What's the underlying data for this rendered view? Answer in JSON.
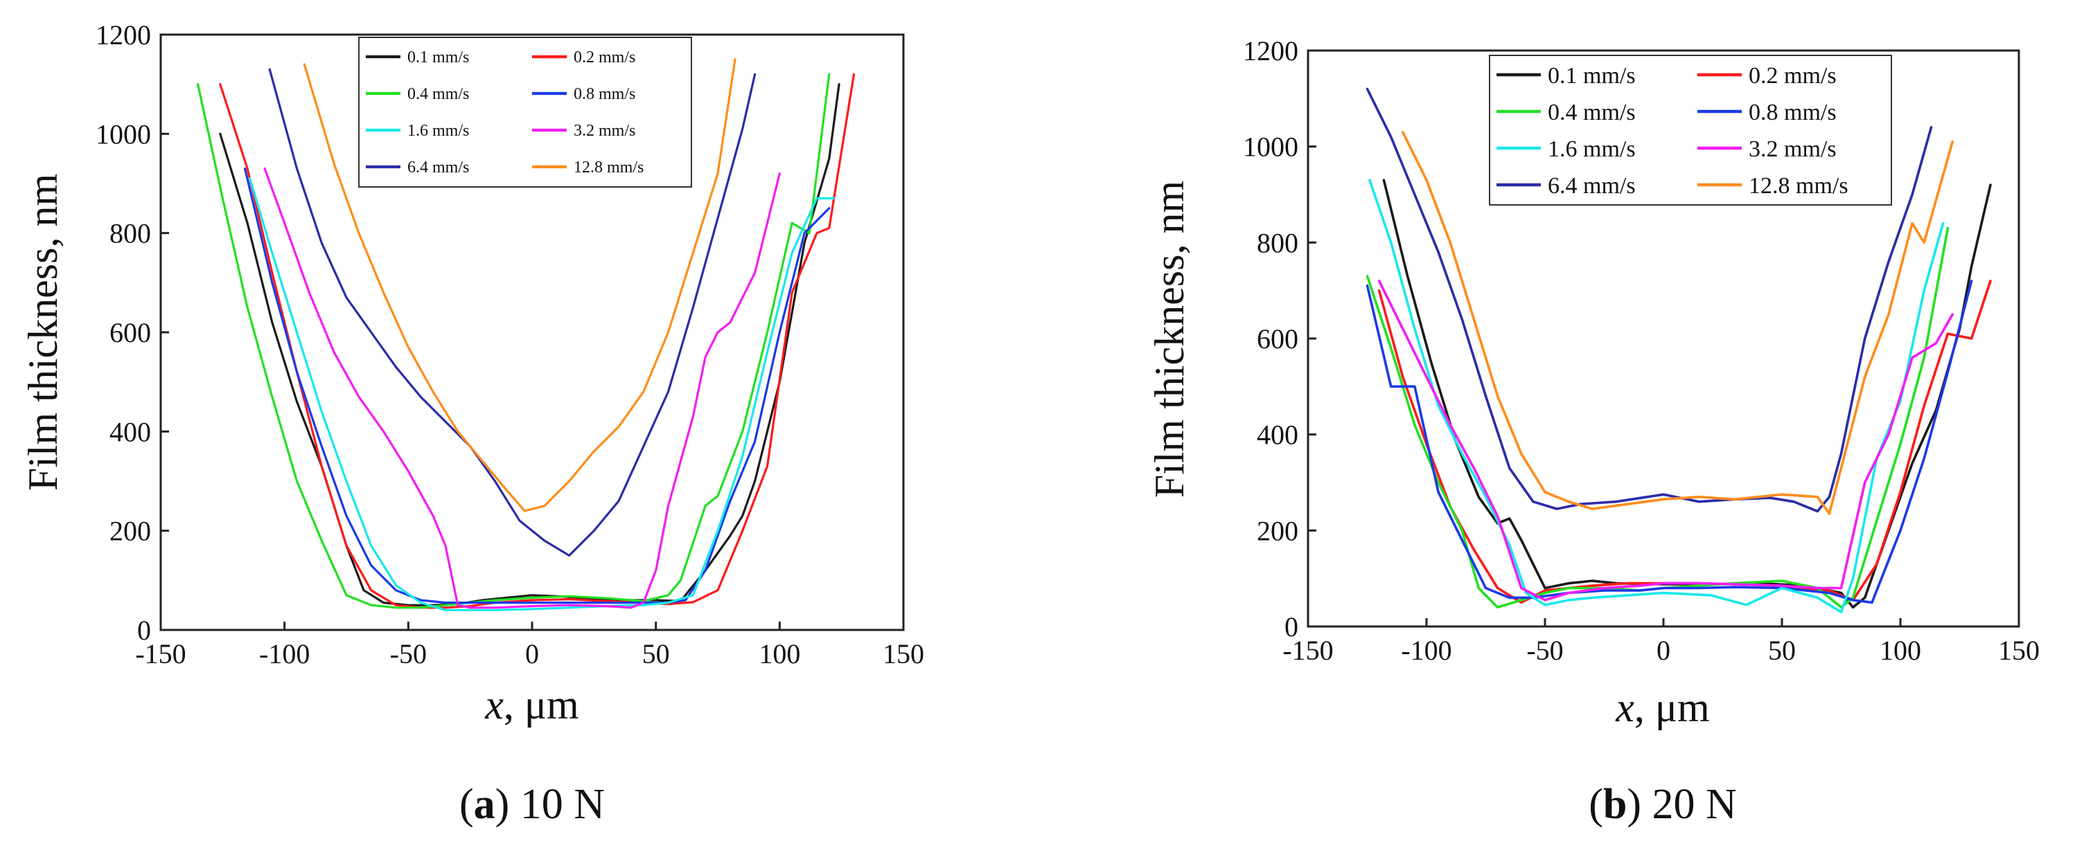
{
  "chart_data": [
    {
      "type": "line",
      "caption_letter": "a",
      "caption_text": " 10 N",
      "xlabel_var": "x",
      "xlabel_unit": ", μm",
      "ylabel": "Film thickness, nm",
      "xlim": [
        -150,
        150
      ],
      "ylim": [
        0,
        1200
      ],
      "xticks": [
        -150,
        -100,
        -50,
        0,
        50,
        100,
        150
      ],
      "yticks": [
        0,
        200,
        400,
        600,
        800,
        1000,
        1200
      ],
      "legend_position": "top-center",
      "series": [
        {
          "name": "0.1 mm/s",
          "color": "#1a1a1a",
          "x": [
            -126,
            -115,
            -105,
            -95,
            -85,
            -75,
            -68,
            -60,
            -50,
            -40,
            -30,
            -20,
            -10,
            0,
            10,
            20,
            30,
            40,
            50,
            60,
            70,
            80,
            85,
            90,
            100,
            110,
            120,
            124
          ],
          "y": [
            1000,
            820,
            620,
            460,
            330,
            170,
            80,
            55,
            50,
            50,
            52,
            60,
            65,
            70,
            68,
            65,
            62,
            60,
            60,
            58,
            120,
            190,
            230,
            300,
            500,
            780,
            950,
            1100
          ]
        },
        {
          "name": "0.2 mm/s",
          "color": "#ff1a1a",
          "x": [
            -126,
            -115,
            -105,
            -95,
            -85,
            -75,
            -65,
            -55,
            -45,
            -35,
            -25,
            -15,
            0,
            15,
            30,
            45,
            55,
            65,
            75,
            85,
            95,
            105,
            115,
            120,
            130
          ],
          "y": [
            1100,
            930,
            720,
            520,
            330,
            170,
            80,
            50,
            45,
            45,
            48,
            55,
            60,
            62,
            58,
            55,
            52,
            56,
            80,
            200,
            330,
            680,
            800,
            810,
            1120
          ]
        },
        {
          "name": "0.4 mm/s",
          "color": "#22e022",
          "x": [
            -135,
            -125,
            -115,
            -105,
            -95,
            -85,
            -75,
            -65,
            -55,
            -45,
            -35,
            -25,
            -15,
            0,
            15,
            30,
            45,
            55,
            60,
            70,
            75,
            85,
            95,
            105,
            112,
            120
          ],
          "y": [
            1100,
            870,
            650,
            470,
            300,
            180,
            70,
            50,
            45,
            45,
            50,
            55,
            60,
            65,
            68,
            64,
            58,
            70,
            100,
            250,
            270,
            400,
            600,
            820,
            800,
            1120
          ]
        },
        {
          "name": "0.8 mm/s",
          "color": "#1a3ae6",
          "x": [
            -116,
            -105,
            -95,
            -85,
            -75,
            -65,
            -55,
            -45,
            -35,
            -25,
            -15,
            0,
            15,
            30,
            45,
            55,
            62,
            70,
            80,
            90,
            100,
            110,
            120
          ],
          "y": [
            930,
            700,
            520,
            370,
            230,
            130,
            80,
            60,
            55,
            55,
            55,
            55,
            55,
            55,
            55,
            55,
            60,
            120,
            260,
            380,
            600,
            800,
            850
          ]
        },
        {
          "name": "1.6 mm/s",
          "color": "#19e8ea",
          "x": [
            -114,
            -105,
            -95,
            -85,
            -75,
            -65,
            -55,
            -45,
            -35,
            -25,
            -15,
            0,
            15,
            30,
            45,
            55,
            65,
            75,
            85,
            95,
            105,
            115,
            122
          ],
          "y": [
            910,
            760,
            600,
            440,
            300,
            170,
            90,
            55,
            40,
            40,
            40,
            42,
            45,
            48,
            50,
            55,
            70,
            200,
            350,
            560,
            760,
            870,
            870
          ]
        },
        {
          "name": "3.2 mm/s",
          "color": "#f21ef2",
          "x": [
            -108,
            -100,
            -90,
            -80,
            -70,
            -60,
            -50,
            -40,
            -35,
            -30,
            -25,
            -15,
            0,
            15,
            30,
            40,
            45,
            50,
            55,
            65,
            70,
            75,
            80,
            90,
            100
          ],
          "y": [
            930,
            820,
            680,
            560,
            470,
            400,
            320,
            230,
            170,
            50,
            45,
            45,
            48,
            50,
            48,
            45,
            55,
            120,
            250,
            430,
            550,
            600,
            620,
            720,
            920
          ]
        },
        {
          "name": "6.4 mm/s",
          "color": "#2c2ca8",
          "x": [
            -106,
            -95,
            -85,
            -75,
            -65,
            -55,
            -45,
            -35,
            -25,
            -15,
            -5,
            5,
            15,
            25,
            35,
            45,
            55,
            65,
            75,
            85,
            90
          ],
          "y": [
            1130,
            930,
            780,
            670,
            600,
            530,
            470,
            420,
            370,
            300,
            220,
            180,
            150,
            200,
            260,
            370,
            480,
            650,
            830,
            1010,
            1120
          ]
        },
        {
          "name": "12.8 mm/s",
          "color": "#ff8c1a",
          "x": [
            -92,
            -80,
            -70,
            -60,
            -50,
            -40,
            -30,
            -20,
            -10,
            -3,
            5,
            15,
            25,
            35,
            45,
            55,
            65,
            75,
            82
          ],
          "y": [
            1140,
            940,
            800,
            680,
            570,
            480,
            400,
            340,
            280,
            240,
            250,
            300,
            360,
            410,
            480,
            600,
            760,
            920,
            1150
          ]
        }
      ]
    },
    {
      "type": "line",
      "caption_letter": "b",
      "caption_text": " 20 N",
      "xlabel_var": "x",
      "xlabel_unit": ", μm",
      "ylabel": "Film thickness, nm",
      "xlim": [
        -150,
        150
      ],
      "ylim": [
        0,
        1200
      ],
      "xticks": [
        -150,
        -100,
        -50,
        0,
        50,
        100,
        150
      ],
      "yticks": [
        0,
        200,
        400,
        600,
        800,
        1000,
        1200
      ],
      "legend_position": "top-center",
      "series": [
        {
          "name": "0.1 mm/s",
          "color": "#1a1a1a",
          "x": [
            -118,
            -108,
            -98,
            -88,
            -78,
            -70,
            -65,
            -60,
            -55,
            -50,
            -40,
            -30,
            -20,
            0,
            20,
            40,
            60,
            75,
            80,
            85,
            95,
            105,
            115,
            125,
            130,
            138
          ],
          "y": [
            930,
            730,
            550,
            390,
            270,
            215,
            225,
            180,
            130,
            80,
            90,
            95,
            90,
            88,
            88,
            90,
            85,
            70,
            40,
            60,
            200,
            340,
            450,
            620,
            750,
            920
          ]
        },
        {
          "name": "0.2 mm/s",
          "color": "#ff1a1a",
          "x": [
            -120,
            -110,
            -100,
            -90,
            -80,
            -70,
            -60,
            -50,
            -40,
            -30,
            -15,
            0,
            15,
            30,
            50,
            70,
            80,
            90,
            100,
            110,
            120,
            130,
            138
          ],
          "y": [
            700,
            520,
            380,
            250,
            160,
            80,
            50,
            75,
            80,
            85,
            90,
            90,
            90,
            88,
            85,
            75,
            55,
            130,
            280,
            460,
            610,
            600,
            720
          ]
        },
        {
          "name": "0.4 mm/s",
          "color": "#22e022",
          "x": [
            -125,
            -115,
            -105,
            -95,
            -85,
            -78,
            -70,
            -60,
            -50,
            -40,
            -25,
            -10,
            0,
            15,
            30,
            50,
            65,
            75,
            80,
            90,
            100,
            110,
            120
          ],
          "y": [
            730,
            580,
            420,
            300,
            200,
            80,
            40,
            55,
            70,
            80,
            80,
            75,
            80,
            85,
            90,
            95,
            80,
            40,
            60,
            220,
            380,
            560,
            830
          ]
        },
        {
          "name": "0.8 mm/s",
          "color": "#1a3ae6",
          "x": [
            -125,
            -115,
            -105,
            -95,
            -85,
            -75,
            -65,
            -55,
            -40,
            -25,
            -10,
            0,
            15,
            30,
            50,
            70,
            80,
            88,
            100,
            110,
            120,
            130
          ],
          "y": [
            710,
            500,
            500,
            280,
            180,
            80,
            60,
            60,
            70,
            75,
            75,
            80,
            80,
            82,
            80,
            70,
            55,
            50,
            200,
            350,
            530,
            720
          ]
        },
        {
          "name": "1.6 mm/s",
          "color": "#19e8ea",
          "x": [
            -124,
            -115,
            -105,
            -95,
            -85,
            -75,
            -65,
            -58,
            -50,
            -40,
            -30,
            -15,
            0,
            20,
            35,
            50,
            65,
            75,
            80,
            90,
            100,
            110,
            118
          ],
          "y": [
            930,
            800,
            620,
            460,
            360,
            270,
            170,
            70,
            45,
            55,
            60,
            65,
            70,
            65,
            45,
            80,
            60,
            30,
            100,
            350,
            470,
            700,
            840
          ]
        },
        {
          "name": "3.2 mm/s",
          "color": "#f21ef2",
          "x": [
            -120,
            -110,
            -100,
            -90,
            -80,
            -70,
            -60,
            -50,
            -40,
            -25,
            -10,
            0,
            15,
            30,
            50,
            65,
            75,
            85,
            95,
            105,
            115,
            122
          ],
          "y": [
            720,
            620,
            520,
            420,
            330,
            230,
            80,
            55,
            70,
            80,
            85,
            90,
            90,
            88,
            85,
            80,
            80,
            300,
            400,
            560,
            590,
            650
          ]
        },
        {
          "name": "6.4 mm/s",
          "color": "#2c2ca8",
          "x": [
            -125,
            -115,
            -105,
            -95,
            -85,
            -75,
            -65,
            -55,
            -45,
            -35,
            -20,
            0,
            15,
            30,
            45,
            55,
            65,
            70,
            75,
            85,
            95,
            105,
            113
          ],
          "y": [
            1120,
            1020,
            900,
            780,
            640,
            480,
            330,
            260,
            245,
            255,
            260,
            275,
            260,
            265,
            268,
            260,
            240,
            270,
            360,
            600,
            760,
            900,
            1040
          ]
        },
        {
          "name": "12.8 mm/s",
          "color": "#ff8c1a",
          "x": [
            -110,
            -100,
            -90,
            -80,
            -70,
            -60,
            -50,
            -40,
            -30,
            -15,
            0,
            15,
            30,
            50,
            65,
            70,
            75,
            85,
            95,
            105,
            110,
            122
          ],
          "y": [
            1030,
            930,
            800,
            640,
            480,
            360,
            280,
            260,
            245,
            255,
            265,
            270,
            265,
            275,
            270,
            235,
            330,
            520,
            650,
            840,
            800,
            1010
          ]
        }
      ]
    }
  ]
}
